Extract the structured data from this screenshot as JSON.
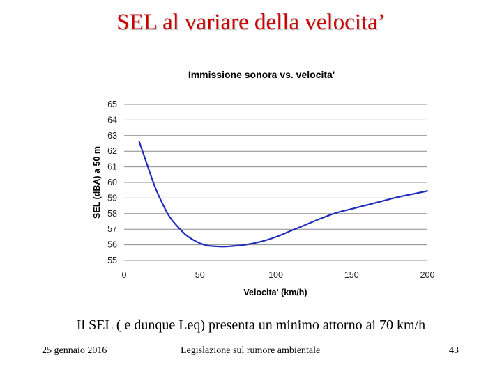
{
  "slide": {
    "title": "SEL al variare della velocita’",
    "caption": "Il SEL ( e dunque Leq) presenta un minimo attorno ai 70 km/h",
    "footer_date": "25 gennaio 2016",
    "footer_center": "Legislazione sul rumore ambientale",
    "page_number": "43"
  },
  "colors": {
    "title": "#cc0000",
    "line": "#1f2db8",
    "grid": "#8c8c8c"
  },
  "chart_data": {
    "type": "line",
    "title": "Immissione sonora vs. velocita'",
    "xlabel": "Velocita' (km/h)",
    "ylabel": "SEL (dBA) a 50 m",
    "xlim": [
      0,
      200
    ],
    "ylim": [
      55,
      65
    ],
    "xticks": [
      "0",
      "50",
      "100",
      "150",
      "200"
    ],
    "yticks": [
      "55",
      "56",
      "57",
      "58",
      "59",
      "60",
      "61",
      "62",
      "63",
      "64",
      "65"
    ],
    "grid": "horizontal",
    "legend": "none",
    "series": [
      {
        "x": [
          10,
          15,
          20,
          25,
          30,
          35,
          40,
          45,
          50,
          55,
          60,
          65,
          70,
          75,
          80,
          90,
          100,
          110,
          120,
          130,
          140,
          150,
          160,
          170,
          180,
          190,
          200
        ],
        "y": [
          62.6,
          61.2,
          59.8,
          58.7,
          57.8,
          57.2,
          56.7,
          56.35,
          56.1,
          55.95,
          55.9,
          55.88,
          55.9,
          55.95,
          56.0,
          56.2,
          56.5,
          56.9,
          57.3,
          57.7,
          58.05,
          58.3,
          58.55,
          58.8,
          59.05,
          59.25,
          59.45
        ]
      }
    ]
  }
}
